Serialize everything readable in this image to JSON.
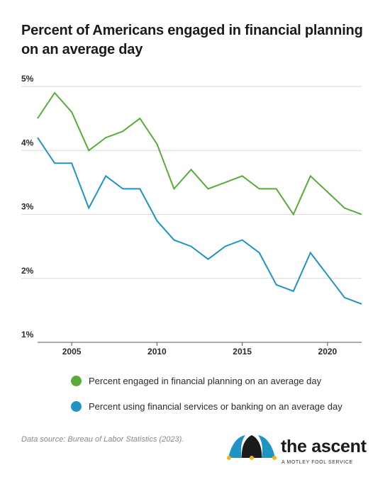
{
  "title": "Percent of Americans engaged in financial planning on an average day",
  "source": "Data source: Bureau of Labor Statistics (2023).",
  "logo": {
    "wordmark": "the ascent",
    "tagline": "A MOTLEY FOOL SERVICE"
  },
  "chart_data": {
    "type": "line",
    "x": [
      2003,
      2004,
      2005,
      2006,
      2007,
      2008,
      2009,
      2010,
      2011,
      2012,
      2013,
      2014,
      2015,
      2016,
      2017,
      2018,
      2019,
      2020,
      2021,
      2022
    ],
    "series": [
      {
        "name": "Percent engaged in financial planning on an average day",
        "color": "#5aab3a",
        "values": [
          4.5,
          4.9,
          4.6,
          4.0,
          4.2,
          4.3,
          4.5,
          4.1,
          3.4,
          3.7,
          3.4,
          3.5,
          3.6,
          3.4,
          3.4,
          3.0,
          3.6,
          3.35,
          3.1,
          3.0
        ]
      },
      {
        "name": "Percent using financial services or banking on an average day",
        "color": "#1f93c3",
        "values": [
          4.2,
          3.8,
          3.8,
          3.1,
          3.6,
          3.4,
          3.4,
          2.9,
          2.6,
          2.5,
          2.3,
          2.5,
          2.6,
          2.4,
          1.9,
          1.8,
          2.4,
          2.05,
          1.7,
          1.6
        ]
      }
    ],
    "yticks": [
      "5%",
      "4%",
      "3%",
      "2%",
      "1%"
    ],
    "ytick_values": [
      5,
      4,
      3,
      2,
      1
    ],
    "xticks": [
      "2005",
      "2010",
      "2015",
      "2020"
    ],
    "xtick_values": [
      2005,
      2010,
      2015,
      2020
    ],
    "ylim": [
      1,
      5
    ],
    "xlim": [
      2003,
      2022
    ],
    "grid": true,
    "legend_position": "bottom"
  }
}
